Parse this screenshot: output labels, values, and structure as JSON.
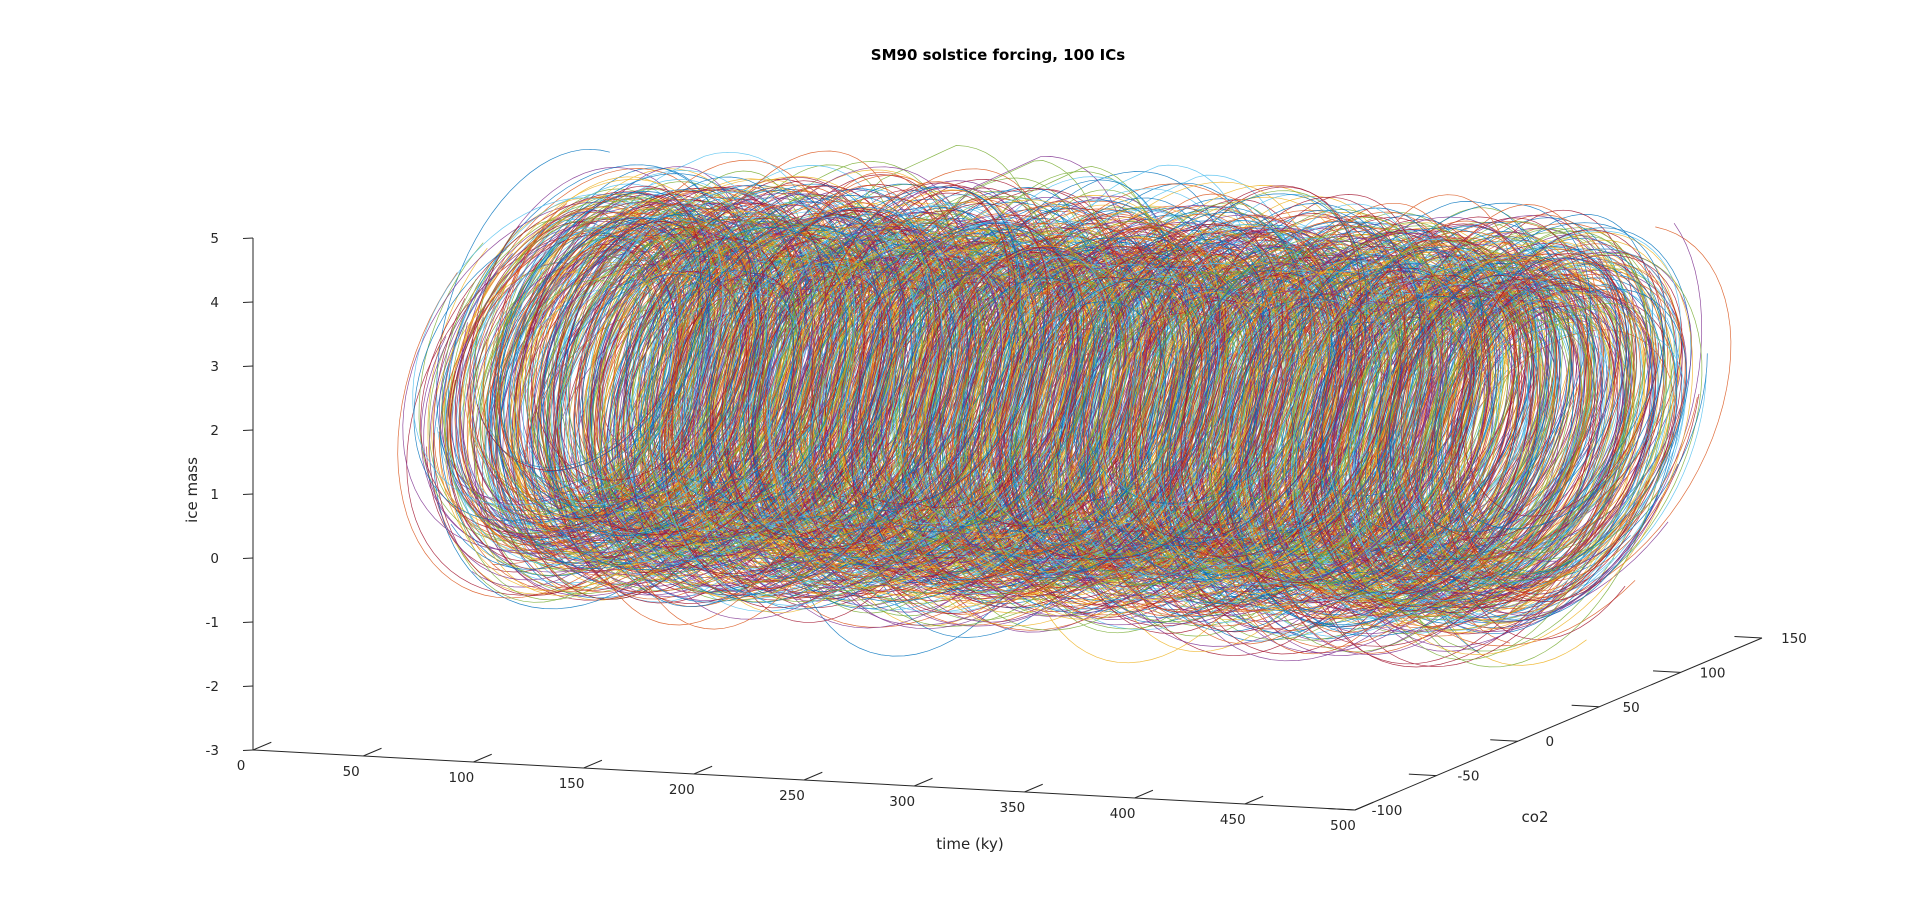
{
  "chart_data": {
    "type": "line",
    "projection": "3d",
    "title": "SM90 solstice forcing, 100 ICs",
    "xlabel": "time (ky)",
    "ylabel": "co2",
    "zlabel": "ice mass",
    "xlim": [
      0,
      500
    ],
    "ylim": [
      -100,
      150
    ],
    "zlim": [
      -3,
      5
    ],
    "xticks": [
      "0",
      "50",
      "100",
      "150",
      "200",
      "250",
      "300",
      "350",
      "400",
      "450",
      "500"
    ],
    "yticks": [
      "-100",
      "-50",
      "0",
      "50",
      "100",
      "150"
    ],
    "zticks": [
      "-3",
      "-2",
      "-1",
      "0",
      "1",
      "2",
      "3",
      "4",
      "5"
    ],
    "n_series": 100,
    "series_colors": [
      "#0072bd",
      "#d95319",
      "#edb120",
      "#7e2f8e",
      "#77ac30",
      "#4dbeee",
      "#a2142f"
    ],
    "grid": false,
    "legend": "none"
  }
}
